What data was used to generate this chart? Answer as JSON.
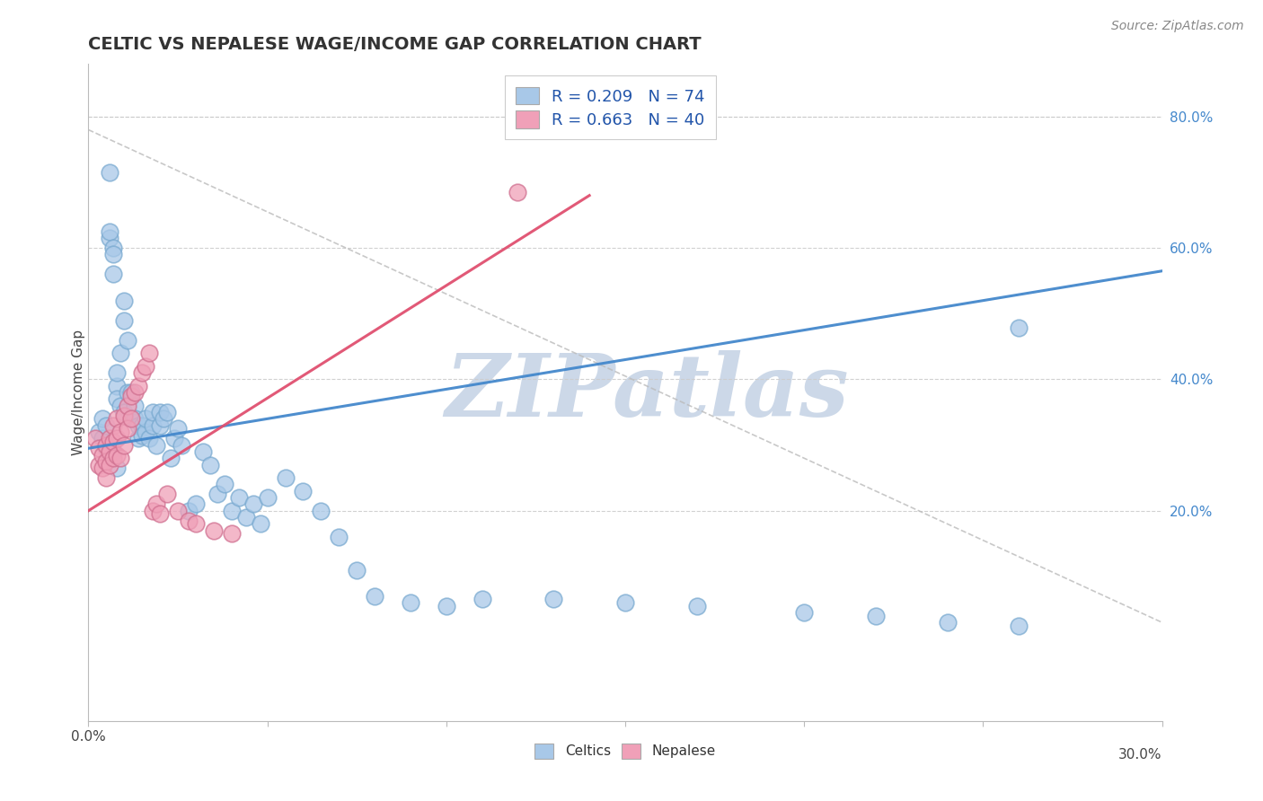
{
  "title": "CELTIC VS NEPALESE WAGE/INCOME GAP CORRELATION CHART",
  "source": "Source: ZipAtlas.com",
  "ylabel": "Wage/Income Gap",
  "right_ytick_labels": [
    "20.0%",
    "40.0%",
    "60.0%",
    "80.0%"
  ],
  "right_ytick_values": [
    0.2,
    0.4,
    0.6,
    0.8
  ],
  "xmin": 0.0,
  "xmax": 0.3,
  "ymin": -0.12,
  "ymax": 0.88,
  "celtics_color": "#a8c8e8",
  "celtics_edge_color": "#7aaad0",
  "nepalese_color": "#f0a0b8",
  "nepalese_edge_color": "#d07090",
  "celtics_line_color": "#4488cc",
  "nepalese_line_color": "#e05070",
  "grid_color": "#cccccc",
  "watermark_text": "ZIPatlas",
  "watermark_color": "#ccd8e8",
  "legend1_label": "R = 0.209   N = 74",
  "legend2_label": "R = 0.663   N = 40",
  "legend_text_color": "#2255aa",
  "bottom_legend_labels": [
    "Celtics",
    "Nepalese"
  ],
  "celtics_line_x0": 0.0,
  "celtics_line_y0": 0.295,
  "celtics_line_x1": 0.3,
  "celtics_line_y1": 0.565,
  "nepalese_line_x0": 0.0,
  "nepalese_line_y0": 0.2,
  "nepalese_line_x1": 0.14,
  "nepalese_line_y1": 0.68,
  "ref_line_x0": 0.0,
  "ref_line_y0": 0.78,
  "ref_line_x1": 0.3,
  "ref_line_y1": 0.03,
  "celtics_pts_x": [
    0.003,
    0.004,
    0.004,
    0.005,
    0.005,
    0.006,
    0.006,
    0.007,
    0.007,
    0.007,
    0.008,
    0.008,
    0.008,
    0.009,
    0.009,
    0.01,
    0.01,
    0.01,
    0.011,
    0.011,
    0.012,
    0.012,
    0.013,
    0.013,
    0.014,
    0.014,
    0.015,
    0.015,
    0.016,
    0.016,
    0.017,
    0.018,
    0.018,
    0.019,
    0.02,
    0.02,
    0.021,
    0.022,
    0.023,
    0.024,
    0.025,
    0.026,
    0.028,
    0.03,
    0.032,
    0.034,
    0.036,
    0.038,
    0.04,
    0.042,
    0.044,
    0.046,
    0.048,
    0.05,
    0.055,
    0.06,
    0.065,
    0.07,
    0.075,
    0.08,
    0.09,
    0.1,
    0.11,
    0.13,
    0.15,
    0.17,
    0.2,
    0.22,
    0.24,
    0.26,
    0.006,
    0.007,
    0.008,
    0.26
  ],
  "celtics_pts_y": [
    0.32,
    0.34,
    0.31,
    0.33,
    0.295,
    0.615,
    0.625,
    0.6,
    0.56,
    0.59,
    0.39,
    0.41,
    0.37,
    0.44,
    0.36,
    0.49,
    0.52,
    0.35,
    0.38,
    0.46,
    0.34,
    0.38,
    0.36,
    0.34,
    0.31,
    0.33,
    0.33,
    0.315,
    0.32,
    0.34,
    0.31,
    0.33,
    0.35,
    0.3,
    0.33,
    0.35,
    0.34,
    0.35,
    0.28,
    0.31,
    0.325,
    0.3,
    0.2,
    0.21,
    0.29,
    0.27,
    0.225,
    0.24,
    0.2,
    0.22,
    0.19,
    0.21,
    0.18,
    0.22,
    0.25,
    0.23,
    0.2,
    0.16,
    0.11,
    0.07,
    0.06,
    0.055,
    0.065,
    0.065,
    0.06,
    0.055,
    0.045,
    0.04,
    0.03,
    0.025,
    0.715,
    0.29,
    0.265,
    0.478
  ],
  "nepalese_pts_x": [
    0.002,
    0.003,
    0.003,
    0.004,
    0.004,
    0.005,
    0.005,
    0.005,
    0.006,
    0.006,
    0.006,
    0.007,
    0.007,
    0.007,
    0.008,
    0.008,
    0.008,
    0.009,
    0.009,
    0.01,
    0.01,
    0.011,
    0.011,
    0.012,
    0.012,
    0.013,
    0.014,
    0.015,
    0.016,
    0.017,
    0.018,
    0.019,
    0.02,
    0.022,
    0.025,
    0.028,
    0.03,
    0.035,
    0.04,
    0.12
  ],
  "nepalese_pts_y": [
    0.31,
    0.295,
    0.27,
    0.285,
    0.265,
    0.3,
    0.275,
    0.25,
    0.31,
    0.29,
    0.27,
    0.33,
    0.305,
    0.28,
    0.34,
    0.31,
    0.285,
    0.32,
    0.28,
    0.345,
    0.3,
    0.36,
    0.325,
    0.375,
    0.34,
    0.38,
    0.39,
    0.41,
    0.42,
    0.44,
    0.2,
    0.21,
    0.195,
    0.225,
    0.2,
    0.185,
    0.18,
    0.17,
    0.165,
    0.685
  ]
}
